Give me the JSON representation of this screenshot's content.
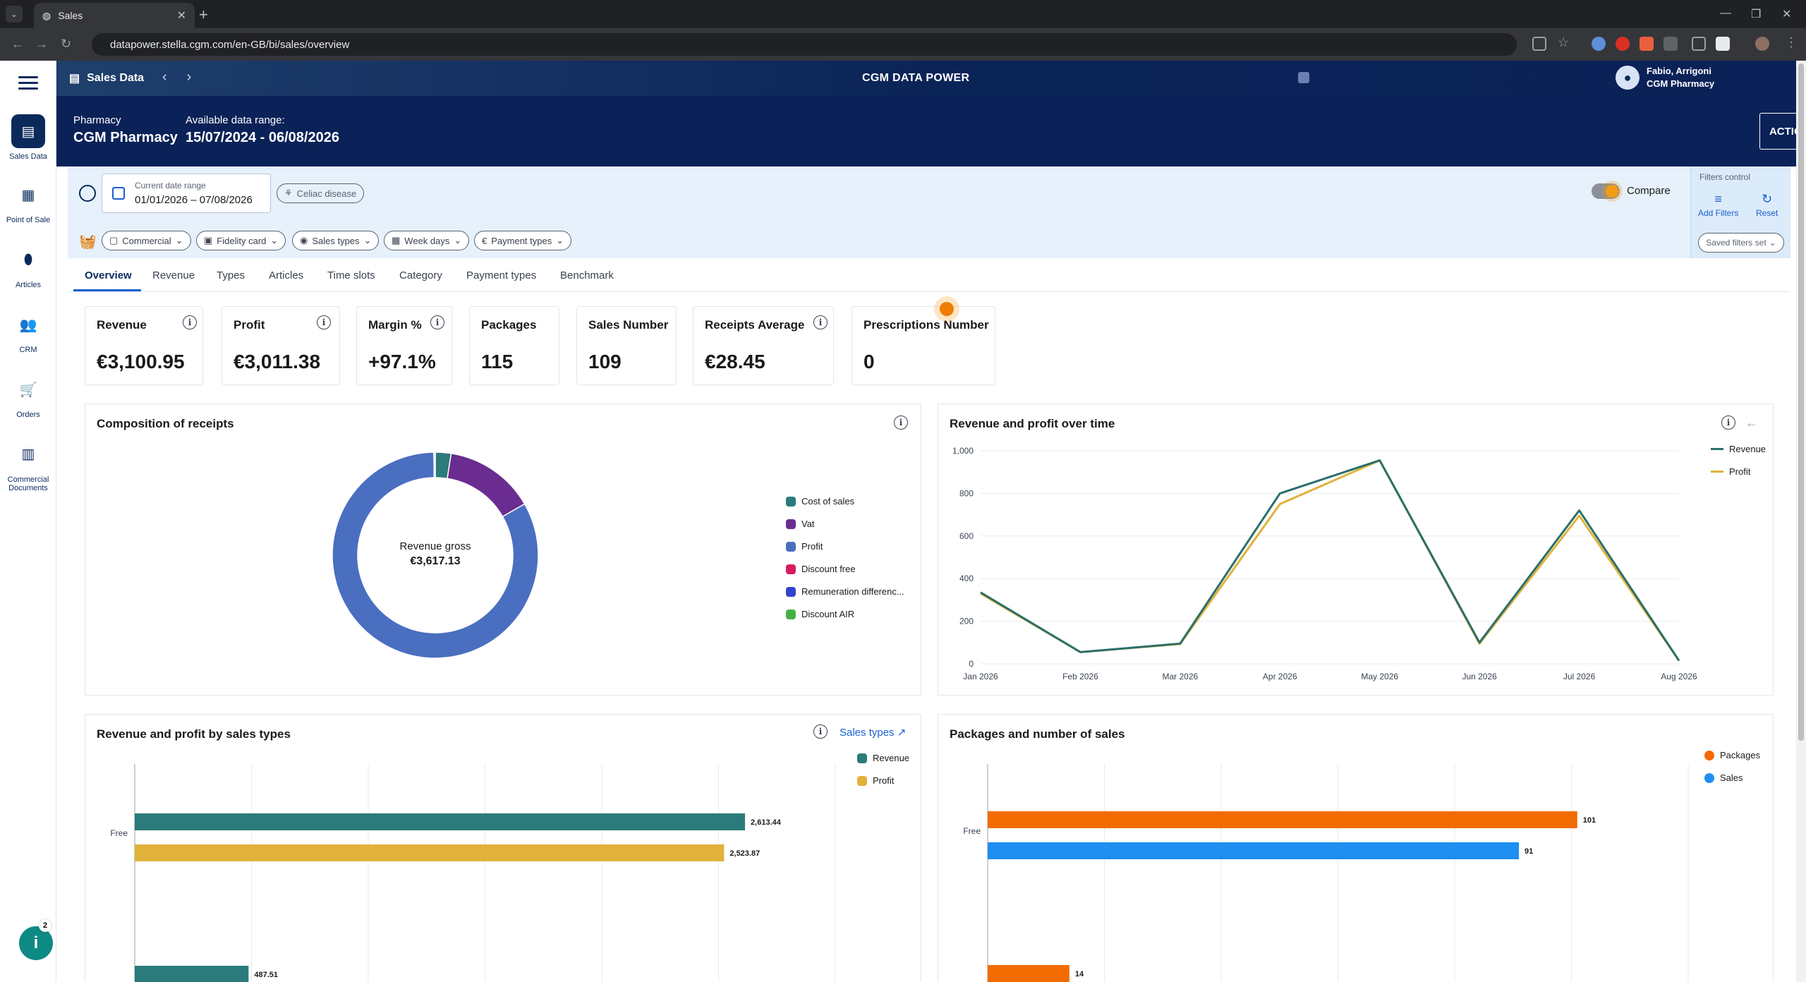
{
  "browser": {
    "tab_title": "Sales",
    "url": "datapower.stella.cgm.com/en-GB/bi/sales/overview"
  },
  "rail": {
    "items": [
      {
        "label": "Sales Data",
        "icon": "register-icon"
      },
      {
        "label": "Point of Sale",
        "icon": "calculator-icon"
      },
      {
        "label": "Articles",
        "icon": "pill-icon"
      },
      {
        "label": "CRM",
        "icon": "people-icon"
      },
      {
        "label": "Orders",
        "icon": "cart-icon"
      },
      {
        "label": "Commercial Documents",
        "icon": "document-icon"
      }
    ],
    "help_badge": "2"
  },
  "header": {
    "section": "Sales Data",
    "app_title": "CGM DATA POWER",
    "user_name": "Fabio, Arrigoni",
    "user_org": "CGM Pharmacy"
  },
  "subheader": {
    "pharmacy_label": "Pharmacy",
    "pharmacy_value": "CGM Pharmacy",
    "range_label": "Available data range:",
    "range_value": "15/07/2024 - 06/08/2026",
    "actions_label": "ACTIONS"
  },
  "filters": {
    "date_label": "Current date range",
    "date_value": "01/01/2026 – 07/08/2026",
    "celiac": "Celiac disease",
    "chips": [
      "Commercial",
      "Fidelity card",
      "Sales types",
      "Week days",
      "Payment types"
    ],
    "compare": "Compare",
    "control_title": "Filters control",
    "add_filters": "Add Filters",
    "reset": "Reset",
    "saved_sets": "Saved filters set"
  },
  "tabs": [
    "Overview",
    "Revenue",
    "Types",
    "Articles",
    "Time slots",
    "Category",
    "Payment types",
    "Benchmark"
  ],
  "kpis": [
    {
      "label": "Revenue",
      "value": "€3,100.95"
    },
    {
      "label": "Profit",
      "value": "€3,011.38"
    },
    {
      "label": "Margin %",
      "value": "+97.1%"
    },
    {
      "label": "Packages",
      "value": "115"
    },
    {
      "label": "Sales Number",
      "value": "109"
    },
    {
      "label": "Receipts Average",
      "value": "€28.45"
    },
    {
      "label": "Prescriptions Number",
      "value": "0"
    }
  ],
  "panels": {
    "composition_title": "Composition of receipts",
    "donut_center_label": "Revenue gross",
    "donut_center_value": "€3,617.13",
    "over_time_title": "Revenue and profit over time",
    "by_types_title": "Revenue and profit by sales types",
    "by_types_link": "Sales types",
    "packages_title": "Packages and number of sales"
  },
  "chart_data": [
    {
      "type": "pie",
      "title": "Composition of receipts",
      "labels": [
        "Cost of sales",
        "Vat",
        "Profit",
        "Discount free",
        "Remuneration differenc...",
        "Discount AIR"
      ],
      "values": [
        89.57,
        516.18,
        3011.38,
        5,
        3,
        0
      ],
      "colors": [
        "#2a7b7a",
        "#6a2c91",
        "#4a6fc0",
        "#d81b60",
        "#3344cc",
        "#44b044"
      ]
    },
    {
      "type": "line",
      "title": "Revenue and profit over time",
      "x": [
        "Jan 2026",
        "Feb 2026",
        "Mar 2026",
        "Apr 2026",
        "May 2026",
        "Jun 2026",
        "Jul 2026",
        "Aug 2026"
      ],
      "series": [
        {
          "name": "Revenue",
          "values": [
            335,
            55,
            95,
            800,
            955,
            100,
            720,
            15
          ],
          "color": "#2a6f6b"
        },
        {
          "name": "Profit",
          "values": [
            330,
            55,
            93,
            750,
            955,
            95,
            695,
            15
          ],
          "color": "#e0b23a"
        }
      ],
      "ylim": [
        0,
        1000
      ],
      "yticks": [
        "0",
        "200",
        "400",
        "600",
        "800",
        "1,000"
      ],
      "legend": "top-right"
    },
    {
      "type": "bar",
      "title": "Revenue and profit by sales types",
      "categories": [
        "Free",
        ""
      ],
      "series": [
        {
          "name": "Revenue",
          "values": [
            2613.44,
            487.51
          ],
          "labels": [
            "2,613.44",
            "487.51"
          ],
          "color": "#2a7b7a"
        },
        {
          "name": "Profit",
          "values": [
            2523.87,
            null
          ],
          "labels": [
            "2,523.87",
            ""
          ],
          "color": "#e0b23a"
        }
      ],
      "xlim": [
        0,
        3000
      ],
      "legend": "top-right"
    },
    {
      "type": "bar",
      "title": "Packages and number of sales",
      "categories": [
        "Free",
        ""
      ],
      "series": [
        {
          "name": "Packages",
          "values": [
            101,
            14
          ],
          "labels": [
            "101",
            "14"
          ],
          "color": "#f26b00"
        },
        {
          "name": "Sales",
          "values": [
            91,
            null
          ],
          "labels": [
            "91",
            ""
          ],
          "color": "#1e8ef0"
        }
      ],
      "xlim": [
        0,
        120
      ],
      "legend": "top-right"
    }
  ]
}
